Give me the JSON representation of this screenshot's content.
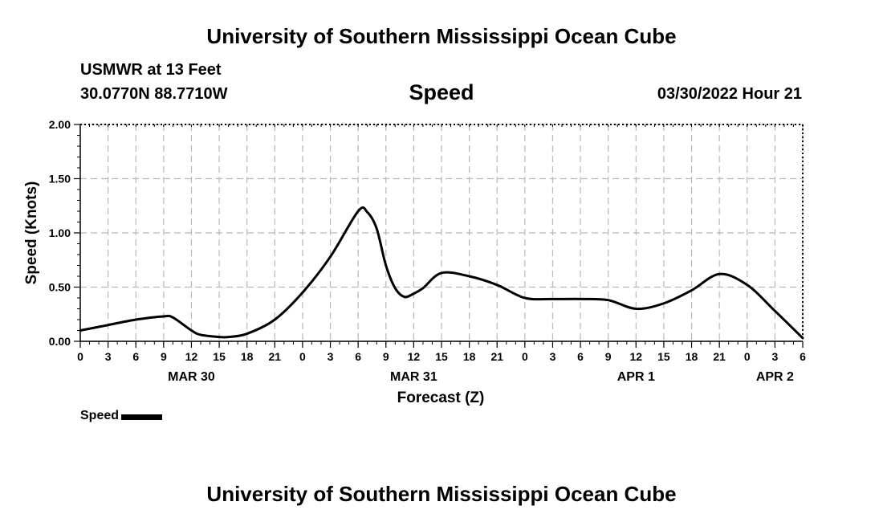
{
  "header": {
    "title": "University of Southern Mississippi Ocean Cube",
    "station": "USMWR at 13 Feet",
    "coords": "30.0770N  88.7710W",
    "chart_title": "Speed",
    "datetime": "03/30/2022 Hour 21"
  },
  "footer": {
    "title": "University of Southern Mississippi Ocean Cube"
  },
  "legend": {
    "label": "Speed",
    "color": "#000000"
  },
  "chart_data": {
    "type": "line",
    "title": "Speed",
    "xlabel": "Forecast (Z)",
    "ylabel": "Speed (Knots)",
    "ylim": [
      0,
      2.0
    ],
    "yticks": [
      "0.00",
      "0.50",
      "1.00",
      "1.50",
      "2.00"
    ],
    "xlim": [
      0,
      78
    ],
    "xticks": [
      "0",
      "3",
      "6",
      "9",
      "12",
      "15",
      "18",
      "21",
      "0",
      "3",
      "6",
      "9",
      "12",
      "15",
      "18",
      "21",
      "0",
      "3",
      "6",
      "9",
      "12",
      "15",
      "18",
      "21",
      "0",
      "3",
      "6"
    ],
    "date_labels": [
      {
        "label": "MAR 30",
        "hour": 12
      },
      {
        "label": "MAR 31",
        "hour": 36
      },
      {
        "label": "APR 1",
        "hour": 60
      },
      {
        "label": "APR 2",
        "hour": 75
      }
    ],
    "grid": true,
    "series": [
      {
        "name": "Speed",
        "color": "#000000",
        "x": [
          0,
          3,
          6,
          9,
          10,
          12,
          13,
          15,
          16,
          18,
          21,
          24,
          27,
          30,
          31,
          32,
          33,
          34,
          35,
          36,
          37,
          39,
          42,
          45,
          48,
          51,
          54,
          57,
          60,
          63,
          66,
          69,
          72,
          75,
          78
        ],
        "y": [
          0.1,
          0.15,
          0.2,
          0.23,
          0.22,
          0.1,
          0.06,
          0.04,
          0.04,
          0.07,
          0.2,
          0.45,
          0.78,
          1.2,
          1.19,
          1.04,
          0.7,
          0.49,
          0.41,
          0.44,
          0.49,
          0.63,
          0.6,
          0.52,
          0.4,
          0.39,
          0.39,
          0.38,
          0.3,
          0.35,
          0.47,
          0.62,
          0.52,
          0.28,
          0.03
        ]
      }
    ]
  }
}
